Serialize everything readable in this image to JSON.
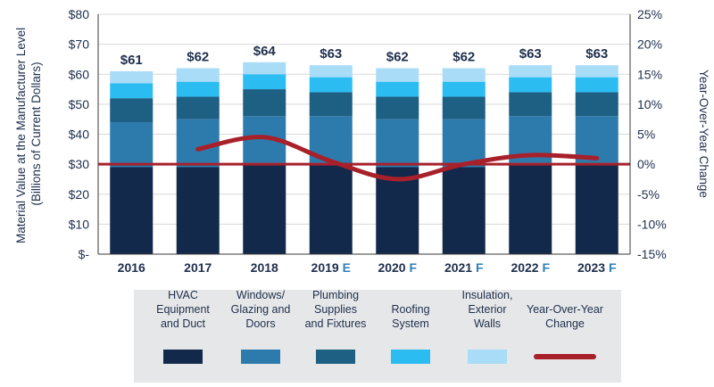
{
  "chart_data": {
    "type": "bar",
    "stacked": true,
    "categories": [
      "2016",
      "2017",
      "2018",
      "2019",
      "2020",
      "2021",
      "2022",
      "2023"
    ],
    "category_suffixes": [
      "",
      "",
      "",
      "E",
      "F",
      "F",
      "F",
      "F"
    ],
    "totals_labels": [
      "$61",
      "$62",
      "$64",
      "$63",
      "$62",
      "$62",
      "$63",
      "$63"
    ],
    "series": [
      {
        "name": "HVAC Equipment and Duct",
        "legend_lines": [
          "HVAC",
          "Equipment",
          "and Duct"
        ],
        "color": "#13294b",
        "values": [
          29,
          29,
          30,
          30,
          29,
          29,
          30,
          30
        ]
      },
      {
        "name": "Windows/ Glazing and Doors",
        "legend_lines": [
          "Windows/",
          "Glazing and",
          "Doors"
        ],
        "color": "#2d7bad",
        "values": [
          15,
          16,
          16,
          16,
          16,
          16,
          16,
          16
        ]
      },
      {
        "name": "Plumbing Supplies and Fixtures",
        "legend_lines": [
          "Plumbing",
          "Supplies",
          "and Fixtures"
        ],
        "color": "#1e5f84",
        "values": [
          8,
          7.5,
          9,
          8,
          7.5,
          7.5,
          8,
          8
        ]
      },
      {
        "name": "Roofing System",
        "legend_lines": [
          "Roofing",
          "System"
        ],
        "color": "#2bbcf2",
        "values": [
          5,
          5,
          5,
          5,
          5,
          5,
          5,
          5
        ]
      },
      {
        "name": "Insulation, Exterior Walls",
        "legend_lines": [
          "Insulation,",
          "Exterior",
          "Walls"
        ],
        "color": "#a8dcf7",
        "values": [
          4,
          4.5,
          4,
          4,
          4.5,
          4.5,
          4,
          4
        ]
      }
    ],
    "line_series": {
      "name": "Year-Over-Year Change",
      "legend_lines": [
        "Year-Over-Year",
        "Change"
      ],
      "color": "#a8202a",
      "axis": "right",
      "unit": "%",
      "values": [
        null,
        2.5,
        4.5,
        0.5,
        -2.5,
        0,
        1.5,
        1
      ]
    },
    "ylabel": "Material Value at the Manufacturer Level (Billions of Current Dollars)",
    "ylabel_lines": [
      "Material Value at the Manufacturer Level",
      "(Billions of Current Dollars)"
    ],
    "y2label": "Year-Over-Year Change",
    "ylim": [
      0,
      80
    ],
    "y2lim": [
      -15,
      25
    ],
    "yticks": [
      0,
      10,
      20,
      30,
      40,
      50,
      60,
      70,
      80
    ],
    "ytick_labels": [
      "$-",
      "$10",
      "$20",
      "$30",
      "$40",
      "$50",
      "$60",
      "$70",
      "$80"
    ],
    "y2ticks": [
      -15,
      -10,
      -5,
      0,
      5,
      10,
      15,
      20,
      25
    ],
    "y2tick_labels": [
      "-15%",
      "-10%",
      "-5%",
      "0%",
      "5%",
      "10%",
      "15%",
      "20%",
      "25%"
    ],
    "reference_line": {
      "value": 0,
      "axis": "right",
      "color": "#a8202a"
    },
    "legend_position": "bottom"
  }
}
